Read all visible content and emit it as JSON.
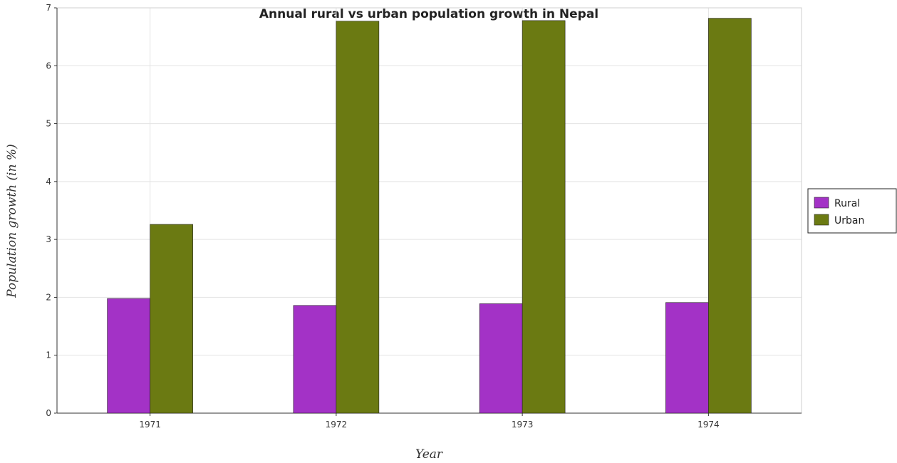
{
  "chart_data": {
    "type": "bar",
    "title": "Annual rural vs urban population growth in Nepal",
    "xlabel": "Year",
    "ylabel": "Population growth (in %)",
    "categories": [
      "1971",
      "1972",
      "1973",
      "1974"
    ],
    "series": [
      {
        "name": "Rural",
        "color": "#a332c6",
        "values": [
          1.98,
          1.86,
          1.89,
          1.91
        ]
      },
      {
        "name": "Urban",
        "color": "#6b7a12",
        "values": [
          3.26,
          6.77,
          6.78,
          6.82
        ]
      }
    ],
    "ylim": [
      0,
      7
    ],
    "yticks": [
      0,
      1,
      2,
      3,
      4,
      5,
      6,
      7
    ],
    "grid": true,
    "legend_position": "right"
  }
}
